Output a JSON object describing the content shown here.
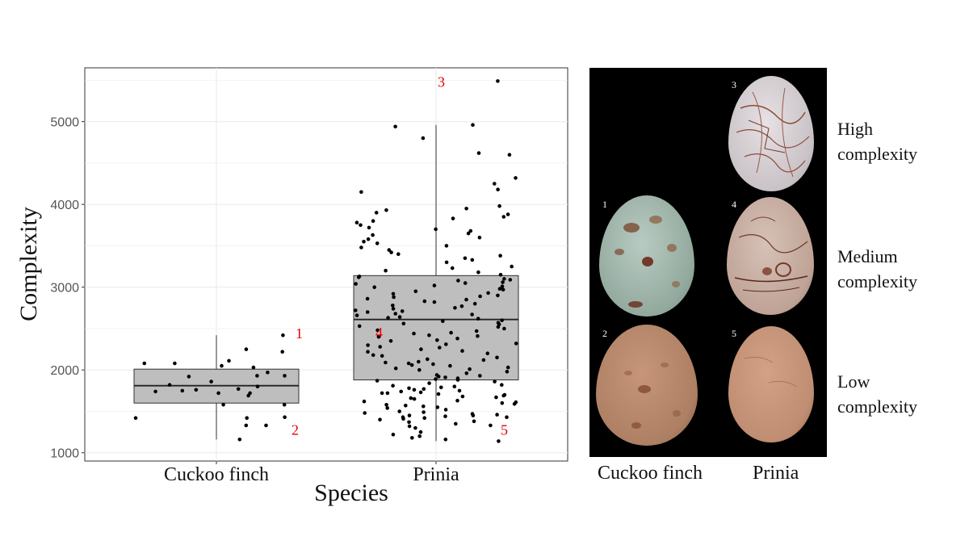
{
  "chart_data": {
    "type": "scatter",
    "subtype": "boxplot-with-jitter",
    "xlabel": "Species",
    "ylabel": "Complexity",
    "categories": [
      "Cuckoo finch",
      "Prinia"
    ],
    "yticks": [
      1000,
      2000,
      3000,
      4000,
      5000
    ],
    "ylim": [
      900,
      5650
    ],
    "grid": true,
    "boxes": [
      {
        "category": "Cuckoo finch",
        "q1": 1600,
        "median": 1810,
        "q3": 2010,
        "whisker_low": 1160,
        "whisker_high": 2420
      },
      {
        "category": "Prinia",
        "q1": 1880,
        "median": 2610,
        "q3": 3140,
        "whisker_low": 1140,
        "whisker_high": 4960
      }
    ],
    "points": [
      {
        "category": "Cuckoo finch",
        "values": [
          1420,
          1580,
          1750,
          1820,
          2030,
          2050,
          1920,
          1930,
          1800,
          1580,
          2250,
          1770,
          1970,
          2080,
          1760,
          1720,
          1690,
          2080,
          1330,
          1860,
          1930,
          1330,
          1740,
          1720,
          1430,
          1420,
          1160,
          2110,
          2420,
          2220
        ]
      },
      {
        "category": "Prinia",
        "values": [
          1300,
          1320,
          1330,
          1370,
          1400,
          1410,
          1420,
          1430,
          1430,
          1440,
          1450,
          1460,
          1480,
          1500,
          1520,
          1550,
          1560,
          1580,
          1600,
          1620,
          1650,
          1660,
          1680,
          1700,
          1710,
          1720,
          1730,
          1740,
          1760,
          1770,
          1780,
          1790,
          1800,
          1810,
          1820,
          1840,
          1860,
          1880,
          1900,
          1920,
          1940,
          1960,
          1980,
          2000,
          2010,
          2020,
          2050,
          2060,
          2080,
          2100,
          2120,
          2150,
          2180,
          2200,
          2220,
          2250,
          2280,
          2300,
          2320,
          2350,
          2380,
          2400,
          2420,
          2450,
          2480,
          2500,
          2520,
          2550,
          2570,
          2600,
          2620,
          2640,
          2660,
          2680,
          2700,
          2720,
          2750,
          2780,
          2800,
          2820,
          2850,
          2880,
          2900,
          2920,
          2950,
          2980,
          3000,
          3020,
          3040,
          3060,
          3080,
          3100,
          3120,
          3150,
          3200,
          3250,
          3300,
          3350,
          3400,
          3420,
          3450,
          3500,
          3550,
          3600,
          3650,
          3680,
          3700,
          3750,
          3800,
          3850,
          3900,
          3950,
          3980,
          4150,
          4180,
          4250,
          4320,
          4600,
          4620,
          4800,
          4940,
          4960,
          5490,
          1200,
          1220,
          1250,
          1140,
          1160,
          1180,
          1350,
          1380,
          1450,
          1470,
          1490,
          1540,
          1570,
          1590,
          1610,
          1630,
          1670,
          1690,
          1720,
          1750,
          1870,
          1890,
          1910,
          1930,
          2030,
          2070,
          2090,
          2130,
          2170,
          2230,
          2270,
          2310,
          2360,
          2410,
          2440,
          2470,
          2530,
          2560,
          2590,
          2630,
          2670,
          2710,
          2740,
          2770,
          2830,
          2860,
          2890,
          2930,
          2970,
          3010,
          3050,
          3090,
          3130,
          3180,
          3230,
          3330,
          3380,
          3480,
          3530,
          3580,
          3630,
          3720,
          3780,
          3830,
          3880,
          3930
        ]
      }
    ],
    "annotations": [
      {
        "label": "1",
        "category": "Cuckoo finch",
        "value": 2420
      },
      {
        "label": "2",
        "category": "Cuckoo finch",
        "value": 1160
      },
      {
        "label": "3",
        "category": "Prinia",
        "value": 5490
      },
      {
        "label": "4",
        "category": "Prinia",
        "value": 2450
      },
      {
        "label": "5",
        "category": "Prinia",
        "value": 1140
      }
    ],
    "colors": {
      "box_fill": "#bebebe",
      "point": "#000000",
      "annotation": "#e00000",
      "grid": "#ebebeb",
      "panel_bg": "#000000"
    }
  },
  "eggs": {
    "columns": [
      "Cuckoo finch",
      "Prinia"
    ],
    "rows": [
      "High complexity",
      "Medium complexity",
      "Low complexity"
    ],
    "items": [
      {
        "number": "3",
        "species": "Prinia",
        "level": "High complexity",
        "color": "#d8d3d6",
        "spots": "#8b4a3a"
      },
      {
        "number": "1",
        "species": "Cuckoo finch",
        "level": "Medium complexity",
        "color": "#9db2a8",
        "spots": "#7a4a30"
      },
      {
        "number": "4",
        "species": "Prinia",
        "level": "Medium complexity",
        "color": "#c7aea3",
        "spots": "#6f3a2a"
      },
      {
        "number": "2",
        "species": "Cuckoo finch",
        "level": "Low complexity",
        "color": "#b5866a",
        "spots": "#7a3f2a"
      },
      {
        "number": "5",
        "species": "Prinia",
        "level": "Low complexity",
        "color": "#c79479",
        "spots": "#9a5a40"
      }
    ],
    "labels": {
      "high_1": "High",
      "high_2": "complexity",
      "medium_1": "Medium",
      "medium_2": "complexity",
      "low_1": "Low",
      "low_2": "complexity",
      "col_cuckoo": "Cuckoo finch",
      "col_prinia": "Prinia"
    }
  }
}
